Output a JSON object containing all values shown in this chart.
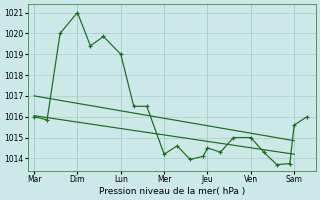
{
  "xlabel": "Pression niveau de la mer( hPa )",
  "bg_color": "#cce8e8",
  "grid_color": "#aacccc",
  "line_color": "#1a6b1a",
  "xlabels": [
    "Mar",
    "Dim",
    "Lun",
    "Mer",
    "Jeu",
    "Ven",
    "Sam"
  ],
  "ylim": [
    1013.4,
    1021.4
  ],
  "yticks": [
    1014,
    1015,
    1016,
    1017,
    1018,
    1019,
    1020,
    1021
  ],
  "figsize": [
    3.2,
    2.0
  ],
  "dpi": 100,
  "trend1_x": [
    0,
    6.0
  ],
  "trend1_y": [
    1017.0,
    1014.85
  ],
  "trend2_x": [
    0,
    6.0
  ],
  "trend2_y": [
    1016.05,
    1014.2
  ],
  "data_x": [
    0.0,
    0.3,
    0.6,
    1.0,
    1.3,
    1.6,
    2.0,
    2.3,
    2.6,
    3.0,
    3.3,
    3.6,
    3.9,
    4.0,
    4.3,
    4.6,
    5.0,
    5.3,
    5.6,
    5.9,
    6.0,
    6.3
  ],
  "data_y": [
    1016.0,
    1015.85,
    1020.0,
    1021.0,
    1019.4,
    1019.85,
    1019.0,
    1016.5,
    1016.5,
    1014.2,
    1014.6,
    1013.95,
    1014.1,
    1014.5,
    1014.3,
    1015.0,
    1015.0,
    1014.3,
    1013.7,
    1013.75,
    1015.6,
    1016.0
  ],
  "xtick_positions": [
    0,
    1,
    2,
    3,
    4,
    5,
    6
  ]
}
